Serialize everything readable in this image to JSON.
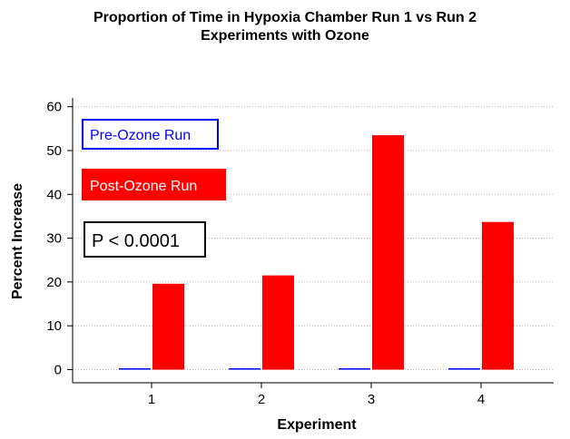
{
  "chart_data": {
    "type": "bar",
    "title": "Proportion of Time in Hypoxia Chamber Run 1 vs Run 2",
    "subtitle": "Experiments with Ozone",
    "xlabel": "Experiment",
    "ylabel": "Percent Increase",
    "categories": [
      "1",
      "2",
      "3",
      "4"
    ],
    "ylim": [
      -3,
      62
    ],
    "yticks": [
      0,
      10,
      20,
      30,
      40,
      50,
      60
    ],
    "grid": true,
    "series": [
      {
        "name": "Pre-Ozone Run",
        "color": "#0000ff",
        "values": [
          0,
          0,
          0,
          0
        ]
      },
      {
        "name": "Post-Ozone Run",
        "color": "#ff0000",
        "values": [
          19.6,
          21.5,
          53.5,
          33.7
        ]
      }
    ],
    "legend_position": "top-left",
    "annotation": "P < 0.0001"
  }
}
